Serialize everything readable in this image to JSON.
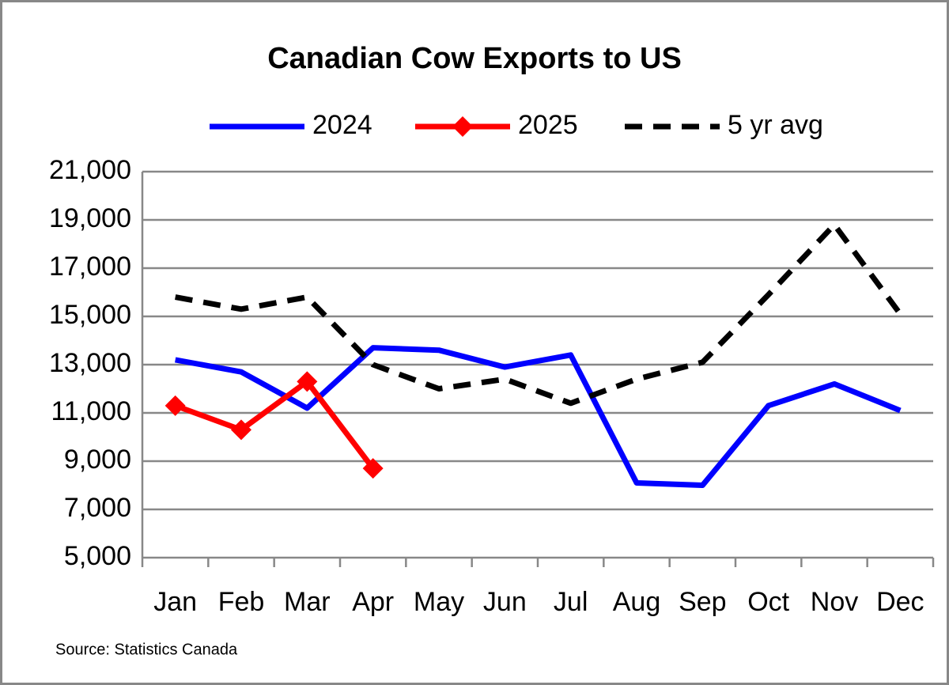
{
  "chart_data": {
    "type": "line",
    "title": "Canadian Cow Exports to US",
    "categories": [
      "Jan",
      "Feb",
      "Mar",
      "Apr",
      "May",
      "Jun",
      "Jul",
      "Aug",
      "Sep",
      "Oct",
      "Nov",
      "Dec"
    ],
    "series": [
      {
        "name": "2024",
        "color": "#0000ff",
        "values": [
          13200,
          12700,
          11200,
          13700,
          13600,
          12900,
          13400,
          8100,
          8000,
          11300,
          12200,
          11100
        ]
      },
      {
        "name": "2025",
        "color": "#ff0000",
        "marker": "diamond",
        "values": [
          11300,
          10300,
          12300,
          8700,
          null,
          null,
          null,
          null,
          null,
          null,
          null,
          null
        ]
      },
      {
        "name": "5 yr avg",
        "color": "#000000",
        "dashed": true,
        "values": [
          15800,
          15300,
          15800,
          13000,
          12000,
          12400,
          11400,
          12400,
          13100,
          15900,
          18800,
          15100
        ]
      }
    ],
    "ylim": [
      5000,
      21000
    ],
    "yticks": [
      {
        "value": 5000,
        "label": "5,000"
      },
      {
        "value": 7000,
        "label": "7,000"
      },
      {
        "value": 9000,
        "label": "9,000"
      },
      {
        "value": 11000,
        "label": "11,000"
      },
      {
        "value": 13000,
        "label": "13,000"
      },
      {
        "value": 15000,
        "label": "15,000"
      },
      {
        "value": 17000,
        "label": "17,000"
      },
      {
        "value": 19000,
        "label": "19,000"
      },
      {
        "value": 21000,
        "label": "21,000"
      }
    ],
    "grid": true,
    "legend": "top",
    "source": "Source: Statistics Canada"
  }
}
